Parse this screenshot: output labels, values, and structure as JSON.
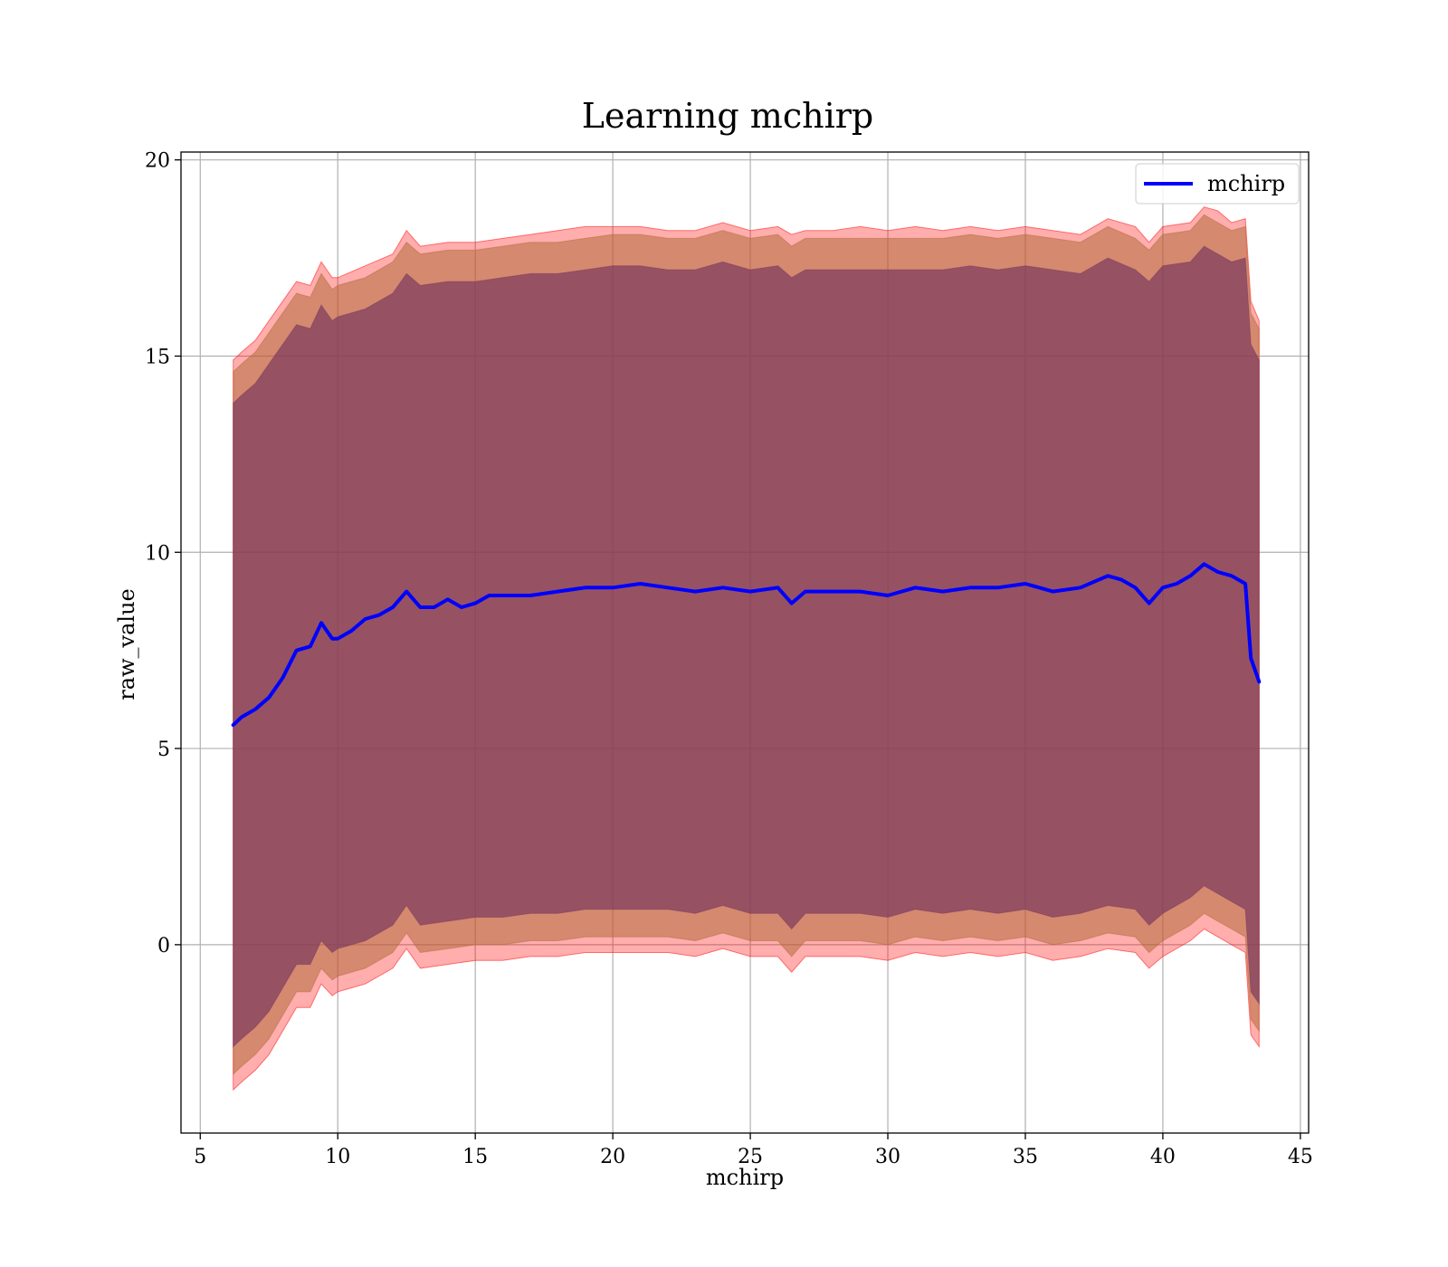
{
  "chart_data": {
    "type": "line",
    "title": "Learning mchirp",
    "xlabel": "mchirp",
    "ylabel": "raw_value",
    "xlim": [
      4.3,
      45.3
    ],
    "ylim": [
      -4.8,
      20.2
    ],
    "xticks": [
      5,
      10,
      15,
      20,
      25,
      30,
      35,
      40,
      45
    ],
    "yticks": [
      0,
      5,
      10,
      15,
      20
    ],
    "grid": true,
    "legend_position": "top-right",
    "series": [
      {
        "name": "mchirp",
        "kind": "line",
        "color": "#0000ff",
        "x": [
          6.2,
          6.5,
          7.0,
          7.5,
          8.0,
          8.5,
          9.0,
          9.4,
          9.8,
          10.0,
          10.5,
          11.0,
          11.5,
          12.0,
          12.5,
          13.0,
          13.5,
          14.0,
          14.5,
          15.0,
          15.5,
          16.0,
          17.0,
          18.0,
          19.0,
          20.0,
          21.0,
          22.0,
          23.0,
          24.0,
          25.0,
          26.0,
          26.5,
          27.0,
          28.0,
          29.0,
          30.0,
          31.0,
          32.0,
          33.0,
          34.0,
          35.0,
          36.0,
          37.0,
          38.0,
          38.5,
          39.0,
          39.5,
          40.0,
          40.5,
          41.0,
          41.5,
          42.0,
          42.5,
          43.0,
          43.2,
          43.5
        ],
        "y": [
          5.6,
          5.8,
          6.0,
          6.3,
          6.8,
          7.5,
          7.6,
          8.2,
          7.8,
          7.8,
          8.0,
          8.3,
          8.4,
          8.6,
          9.0,
          8.6,
          8.6,
          8.8,
          8.6,
          8.7,
          8.9,
          8.9,
          8.9,
          9.0,
          9.1,
          9.1,
          9.2,
          9.1,
          9.0,
          9.1,
          9.0,
          9.1,
          8.7,
          9.0,
          9.0,
          9.0,
          8.9,
          9.1,
          9.0,
          9.1,
          9.1,
          9.2,
          9.0,
          9.1,
          9.4,
          9.3,
          9.1,
          8.7,
          9.1,
          9.2,
          9.4,
          9.7,
          9.5,
          9.4,
          9.2,
          7.3,
          6.7
        ]
      }
    ],
    "bands": [
      {
        "color": "#ff0000",
        "opacity": 0.32,
        "x": [
          6.2,
          6.5,
          7.0,
          7.5,
          8.0,
          8.5,
          9.0,
          9.4,
          9.8,
          10.0,
          11.0,
          12.0,
          12.5,
          13.0,
          14.0,
          15.0,
          16.0,
          17.0,
          18.0,
          19.0,
          20.0,
          21.0,
          22.0,
          23.0,
          24.0,
          25.0,
          26.0,
          26.5,
          27.0,
          28.0,
          29.0,
          30.0,
          31.0,
          32.0,
          33.0,
          34.0,
          35.0,
          36.0,
          37.0,
          38.0,
          39.0,
          39.5,
          40.0,
          41.0,
          41.5,
          42.0,
          42.5,
          43.0,
          43.2,
          43.5
        ],
        "upper": [
          14.9,
          15.1,
          15.4,
          15.9,
          16.4,
          16.9,
          16.8,
          17.4,
          17.0,
          17.0,
          17.3,
          17.6,
          18.2,
          17.8,
          17.9,
          17.9,
          18.0,
          18.1,
          18.2,
          18.3,
          18.3,
          18.3,
          18.2,
          18.2,
          18.4,
          18.2,
          18.3,
          18.1,
          18.2,
          18.2,
          18.3,
          18.2,
          18.3,
          18.2,
          18.3,
          18.2,
          18.3,
          18.2,
          18.1,
          18.5,
          18.3,
          17.9,
          18.3,
          18.4,
          18.8,
          18.7,
          18.4,
          18.5,
          16.4,
          15.9
        ],
        "lower": [
          -3.7,
          -3.5,
          -3.2,
          -2.8,
          -2.2,
          -1.6,
          -1.6,
          -1.0,
          -1.3,
          -1.2,
          -1.0,
          -0.6,
          -0.1,
          -0.6,
          -0.5,
          -0.4,
          -0.4,
          -0.3,
          -0.3,
          -0.2,
          -0.2,
          -0.2,
          -0.2,
          -0.3,
          -0.1,
          -0.3,
          -0.3,
          -0.7,
          -0.3,
          -0.3,
          -0.3,
          -0.4,
          -0.2,
          -0.3,
          -0.2,
          -0.3,
          -0.2,
          -0.4,
          -0.3,
          -0.1,
          -0.2,
          -0.6,
          -0.3,
          0.1,
          0.4,
          0.2,
          0.0,
          -0.2,
          -2.3,
          -2.6
        ]
      },
      {
        "color": "#b36b3c",
        "opacity": 0.55,
        "x": [
          6.2,
          6.5,
          7.0,
          7.5,
          8.0,
          8.5,
          9.0,
          9.4,
          9.8,
          10.0,
          11.0,
          12.0,
          12.5,
          13.0,
          14.0,
          15.0,
          16.0,
          17.0,
          18.0,
          19.0,
          20.0,
          21.0,
          22.0,
          23.0,
          24.0,
          25.0,
          26.0,
          26.5,
          27.0,
          28.0,
          29.0,
          30.0,
          31.0,
          32.0,
          33.0,
          34.0,
          35.0,
          36.0,
          37.0,
          38.0,
          39.0,
          39.5,
          40.0,
          41.0,
          41.5,
          42.0,
          42.5,
          43.0,
          43.2,
          43.5
        ],
        "upper": [
          14.6,
          14.8,
          15.1,
          15.6,
          16.1,
          16.6,
          16.5,
          17.1,
          16.7,
          16.8,
          17.0,
          17.4,
          17.9,
          17.6,
          17.7,
          17.7,
          17.8,
          17.9,
          17.9,
          18.0,
          18.1,
          18.1,
          18.0,
          18.0,
          18.2,
          18.0,
          18.1,
          17.8,
          18.0,
          18.0,
          18.0,
          18.0,
          18.0,
          18.0,
          18.1,
          18.0,
          18.1,
          18.0,
          17.9,
          18.3,
          18.0,
          17.7,
          18.1,
          18.2,
          18.6,
          18.4,
          18.2,
          18.3,
          16.1,
          15.7
        ],
        "lower": [
          -3.3,
          -3.1,
          -2.8,
          -2.4,
          -1.8,
          -1.2,
          -1.2,
          -0.6,
          -0.9,
          -0.8,
          -0.6,
          -0.2,
          0.3,
          -0.2,
          -0.1,
          0.0,
          0.0,
          0.1,
          0.1,
          0.2,
          0.2,
          0.2,
          0.2,
          0.1,
          0.3,
          0.1,
          0.1,
          -0.3,
          0.1,
          0.1,
          0.1,
          0.0,
          0.2,
          0.1,
          0.2,
          0.1,
          0.2,
          0.0,
          0.1,
          0.3,
          0.2,
          -0.2,
          0.1,
          0.5,
          0.8,
          0.6,
          0.4,
          0.2,
          -1.9,
          -2.2
        ]
      },
      {
        "color": "#7a3a5e",
        "opacity": 0.7,
        "x": [
          6.2,
          6.5,
          7.0,
          7.5,
          8.0,
          8.5,
          9.0,
          9.4,
          9.8,
          10.0,
          11.0,
          12.0,
          12.5,
          13.0,
          14.0,
          15.0,
          16.0,
          17.0,
          18.0,
          19.0,
          20.0,
          21.0,
          22.0,
          23.0,
          24.0,
          25.0,
          26.0,
          26.5,
          27.0,
          28.0,
          29.0,
          30.0,
          31.0,
          32.0,
          33.0,
          34.0,
          35.0,
          36.0,
          37.0,
          38.0,
          39.0,
          39.5,
          40.0,
          41.0,
          41.5,
          42.0,
          42.5,
          43.0,
          43.2,
          43.5
        ],
        "upper": [
          13.8,
          14.0,
          14.3,
          14.8,
          15.3,
          15.8,
          15.7,
          16.3,
          15.9,
          16.0,
          16.2,
          16.6,
          17.1,
          16.8,
          16.9,
          16.9,
          17.0,
          17.1,
          17.1,
          17.2,
          17.3,
          17.3,
          17.2,
          17.2,
          17.4,
          17.2,
          17.3,
          17.0,
          17.2,
          17.2,
          17.2,
          17.2,
          17.2,
          17.2,
          17.3,
          17.2,
          17.3,
          17.2,
          17.1,
          17.5,
          17.2,
          16.9,
          17.3,
          17.4,
          17.8,
          17.6,
          17.4,
          17.5,
          15.3,
          14.9
        ],
        "lower": [
          -2.6,
          -2.4,
          -2.1,
          -1.7,
          -1.1,
          -0.5,
          -0.5,
          0.1,
          -0.2,
          -0.1,
          0.1,
          0.5,
          1.0,
          0.5,
          0.6,
          0.7,
          0.7,
          0.8,
          0.8,
          0.9,
          0.9,
          0.9,
          0.9,
          0.8,
          1.0,
          0.8,
          0.8,
          0.4,
          0.8,
          0.8,
          0.8,
          0.7,
          0.9,
          0.8,
          0.9,
          0.8,
          0.9,
          0.7,
          0.8,
          1.0,
          0.9,
          0.5,
          0.8,
          1.2,
          1.5,
          1.3,
          1.1,
          0.9,
          -1.2,
          -1.5
        ]
      }
    ]
  }
}
